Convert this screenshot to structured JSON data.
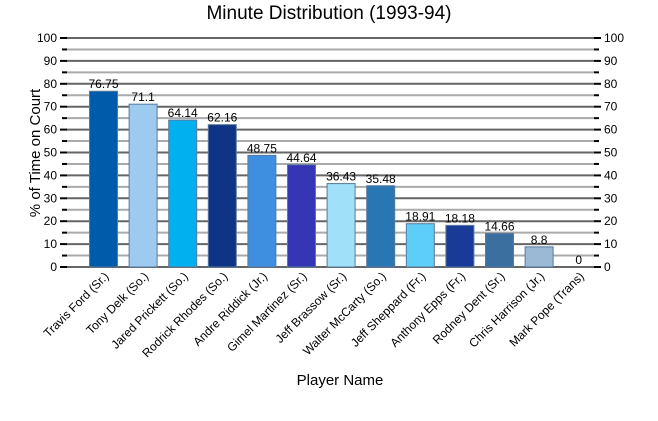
{
  "chart_data": {
    "type": "bar",
    "title": "Minute Distribution (1993-94)",
    "xlabel": "Player Name",
    "ylabel": "% of Time on Court",
    "ylim": [
      0,
      100
    ],
    "yticks": [
      0,
      10,
      20,
      30,
      40,
      50,
      60,
      70,
      80,
      90,
      100
    ],
    "grid": true,
    "categories": [
      "Travis Ford (Sr.)",
      "Tony Delk (So.)",
      "Jared Prickett (So.)",
      "Rodrick Rhodes (So.)",
      "Andre Riddick (Jr.)",
      "Gimel Martinez (Sr.)",
      "Jeff Brassow (Sr.)",
      "Walter McCarty (So.)",
      "Jeff Sheppard (Fr.)",
      "Anthony Epps (Fr.)",
      "Rodney Dent (Sr.)",
      "Chris Harrison (Jr.)",
      "Mark Pope (Trans)"
    ],
    "values": [
      76.75,
      71.1,
      64.14,
      62.16,
      48.75,
      44.64,
      36.43,
      35.48,
      18.91,
      18.18,
      14.66,
      8.8,
      0
    ],
    "value_labels": [
      "76.75",
      "71.1",
      "64.14",
      "62.16",
      "48.75",
      "44.64",
      "36.43",
      "35.48",
      "18.91",
      "18.18",
      "14.66",
      "8.8",
      "0"
    ],
    "colors": [
      "#005bab",
      "#9ccbef",
      "#00b0ef",
      "#0e3485",
      "#3e8fdf",
      "#3535b5",
      "#a0e0f8",
      "#2876b4",
      "#5ecdf8",
      "#1a3a98",
      "#3a6fa0",
      "#9bb8d4",
      "#6a9fcf"
    ]
  }
}
